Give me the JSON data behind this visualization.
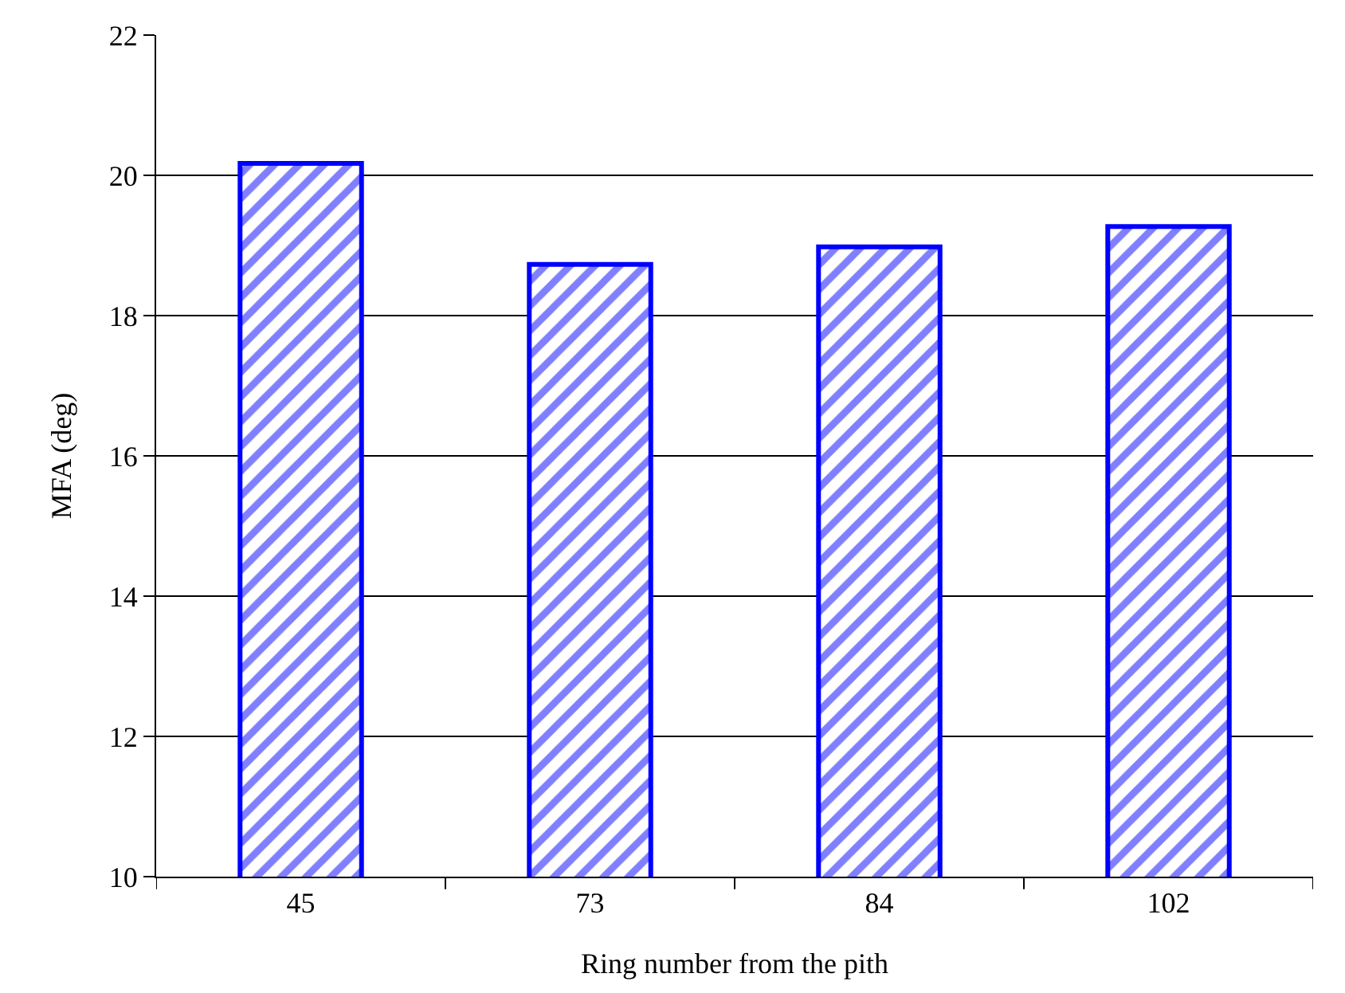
{
  "chart_data": {
    "type": "bar",
    "xlabel": "Ring number from the pith",
    "ylabel": "MFA (deg)",
    "categories": [
      "45",
      "73",
      "84",
      "102"
    ],
    "values": [
      20.17,
      18.73,
      18.98,
      19.27
    ],
    "color": "#0000ff",
    "ylim": [
      10,
      22
    ],
    "yticks": [
      10,
      12,
      14,
      16,
      18,
      20,
      22
    ],
    "grid": "y"
  }
}
